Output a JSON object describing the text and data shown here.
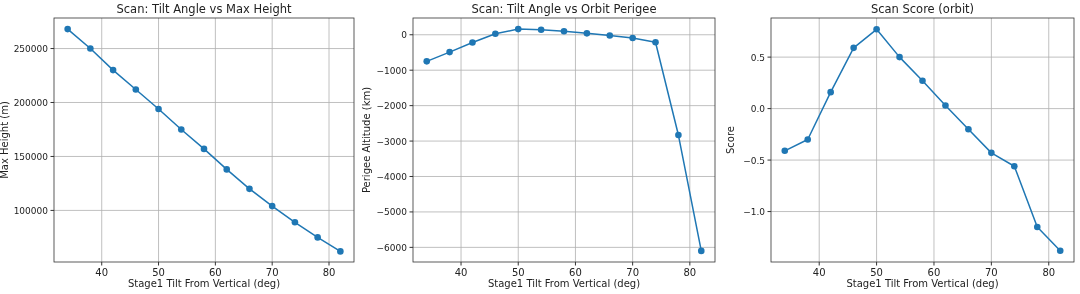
{
  "chart_data": [
    {
      "type": "line",
      "title": "Scan: Tilt Angle vs Max Height",
      "xlabel": "Stage1 Tilt From Vertical (deg)",
      "ylabel": "Max Height (m)",
      "x": [
        34,
        38,
        42,
        46,
        50,
        54,
        58,
        62,
        66,
        70,
        74,
        78,
        82
      ],
      "series": [
        {
          "color": "#1f77b4",
          "values": [
            268000,
            250000,
            230000,
            212000,
            194000,
            175000,
            157000,
            138000,
            120000,
            104000,
            89000,
            75000,
            62000
          ]
        }
      ],
      "xlim": [
        31.6,
        84.4
      ],
      "xticks": [
        40,
        50,
        60,
        70,
        80
      ],
      "ylim": [
        52200,
        278300
      ],
      "yticks": [
        100000,
        150000,
        200000,
        250000
      ],
      "grid": true,
      "marker": "circle",
      "line_style": "solid"
    },
    {
      "type": "line",
      "title": "Scan: Tilt Angle vs Orbit Perigee",
      "xlabel": "Stage1 Tilt From Vertical (deg)",
      "ylabel": "Perigee Altitude (km)",
      "x": [
        34,
        38,
        42,
        46,
        50,
        54,
        58,
        62,
        66,
        70,
        74,
        78,
        82
      ],
      "series": [
        {
          "color": "#1f77b4",
          "values": [
            -750,
            -490,
            -220,
            30,
            160,
            140,
            100,
            40,
            -20,
            -90,
            -210,
            -2830,
            -6100
          ]
        }
      ],
      "xlim": [
        31.6,
        84.4
      ],
      "xticks": [
        40,
        50,
        60,
        70,
        80
      ],
      "ylim": [
        -6413,
        473
      ],
      "yticks": [
        {
          "value": -6000,
          "label": "−6000"
        },
        {
          "value": -5000,
          "label": "−5000"
        },
        {
          "value": -4000,
          "label": "−4000"
        },
        {
          "value": -3000,
          "label": "−3000"
        },
        {
          "value": -2000,
          "label": "−2000"
        },
        {
          "value": -1000,
          "label": "−1000"
        },
        0
      ],
      "grid": true,
      "marker": "circle",
      "line_style": "solid"
    },
    {
      "type": "line",
      "title": "Scan Score (orbit)",
      "xlabel": "Stage1 Tilt From Vertical (deg)",
      "ylabel": "Score",
      "x": [
        34,
        38,
        42,
        46,
        50,
        54,
        58,
        62,
        66,
        70,
        74,
        78,
        82
      ],
      "series": [
        {
          "color": "#1f77b4",
          "values": [
            -0.41,
            -0.3,
            0.16,
            0.59,
            0.77,
            0.5,
            0.27,
            0.03,
            -0.2,
            -0.43,
            -0.56,
            -1.15,
            -1.38
          ]
        }
      ],
      "xlim": [
        31.6,
        84.4
      ],
      "xticks": [
        40,
        50,
        60,
        70,
        80
      ],
      "ylim": [
        -1.49,
        0.88
      ],
      "yticks": [
        {
          "value": -1.0,
          "label": "−1.0"
        },
        {
          "value": -0.5,
          "label": "−0.5"
        },
        {
          "value": 0,
          "label": "0.0"
        },
        {
          "value": 0.5,
          "label": "0.5"
        }
      ],
      "grid": true,
      "marker": "circle",
      "line_style": "solid"
    }
  ]
}
